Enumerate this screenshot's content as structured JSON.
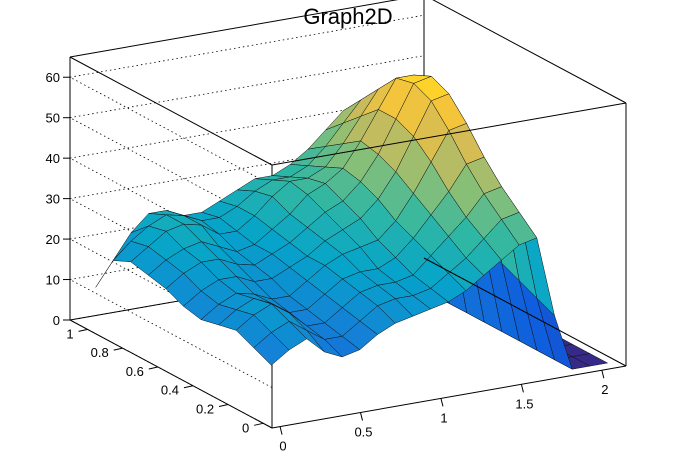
{
  "chart_data": {
    "type": "surface",
    "title": "Graph2D",
    "x_ticks": [
      "0",
      "0.5",
      "1",
      "1.5",
      "2"
    ],
    "y_ticks": [
      "0",
      "0.2",
      "0.4",
      "0.6",
      "0.8",
      "1"
    ],
    "z_ticks": [
      "0",
      "10",
      "20",
      "30",
      "40",
      "50",
      "60"
    ],
    "x_range": [
      -0.05,
      2.15
    ],
    "y_range": [
      -0.05,
      1.1
    ],
    "z_range": [
      0,
      65
    ],
    "grid": "dotted",
    "colormap": [
      "#352a87",
      "#0f5cdd",
      "#1481d6",
      "#06a4ca",
      "#2eb7a4",
      "#87bf77",
      "#d1bb59",
      "#fec832",
      "#f9fb0e"
    ],
    "grid_x": [
      0,
      0.11,
      0.22,
      0.33,
      0.44,
      0.55,
      0.66,
      0.77,
      0.88,
      0.99,
      1.1,
      1.21,
      1.32,
      1.43,
      1.54,
      1.65,
      1.76,
      1.87,
      1.98,
      2.09
    ],
    "grid_y": [
      0,
      0.1,
      0.2,
      0.3,
      0.4,
      0.5,
      0.6,
      0.7,
      0.8,
      0.9,
      1.0
    ],
    "z_rows": [
      [
        14,
        17,
        19,
        15,
        13,
        14,
        17,
        19,
        20,
        21,
        22,
        24,
        27,
        30,
        33,
        34,
        14,
        0,
        0,
        0
      ],
      [
        16,
        19,
        21,
        18,
        15,
        15,
        18,
        21,
        22,
        22,
        23,
        26,
        29,
        33,
        37,
        38,
        16,
        0,
        0,
        0
      ],
      [
        18,
        21,
        23,
        20,
        16,
        16,
        19,
        22,
        23,
        23,
        24,
        28,
        32,
        36,
        41,
        42,
        18,
        0,
        0,
        0
      ],
      [
        17,
        20,
        22,
        20,
        17,
        17,
        20,
        23,
        24,
        24,
        26,
        30,
        35,
        40,
        46,
        47,
        20,
        0,
        0,
        0
      ],
      [
        16,
        19,
        21,
        20,
        18,
        18,
        21,
        24,
        26,
        27,
        28,
        32,
        38,
        45,
        52,
        53,
        22,
        0,
        0,
        0
      ],
      [
        17,
        20,
        22,
        22,
        20,
        20,
        22,
        24,
        27,
        29,
        31,
        35,
        41,
        49,
        57,
        58,
        24,
        0,
        0,
        0
      ],
      [
        19,
        22,
        24,
        24,
        22,
        21,
        23,
        25,
        28,
        31,
        33,
        37,
        43,
        51,
        59,
        60,
        25,
        0,
        0,
        0
      ],
      [
        20,
        23,
        25,
        26,
        24,
        22,
        23,
        26,
        29,
        33,
        35,
        38,
        44,
        51,
        58,
        58,
        24,
        0,
        0,
        0
      ],
      [
        21,
        24,
        27,
        28,
        27,
        24,
        24,
        27,
        31,
        34,
        34,
        36,
        41,
        47,
        53,
        53,
        22,
        0,
        0,
        0
      ],
      [
        19,
        23,
        26,
        28,
        27,
        25,
        25,
        27,
        30,
        32,
        32,
        34,
        38,
        43,
        48,
        48,
        20,
        0,
        0,
        0
      ],
      [
        10,
        16,
        22,
        26,
        26,
        24,
        24,
        26,
        28,
        30,
        30,
        32,
        35,
        39,
        43,
        43,
        18,
        0,
        0,
        0
      ]
    ]
  }
}
